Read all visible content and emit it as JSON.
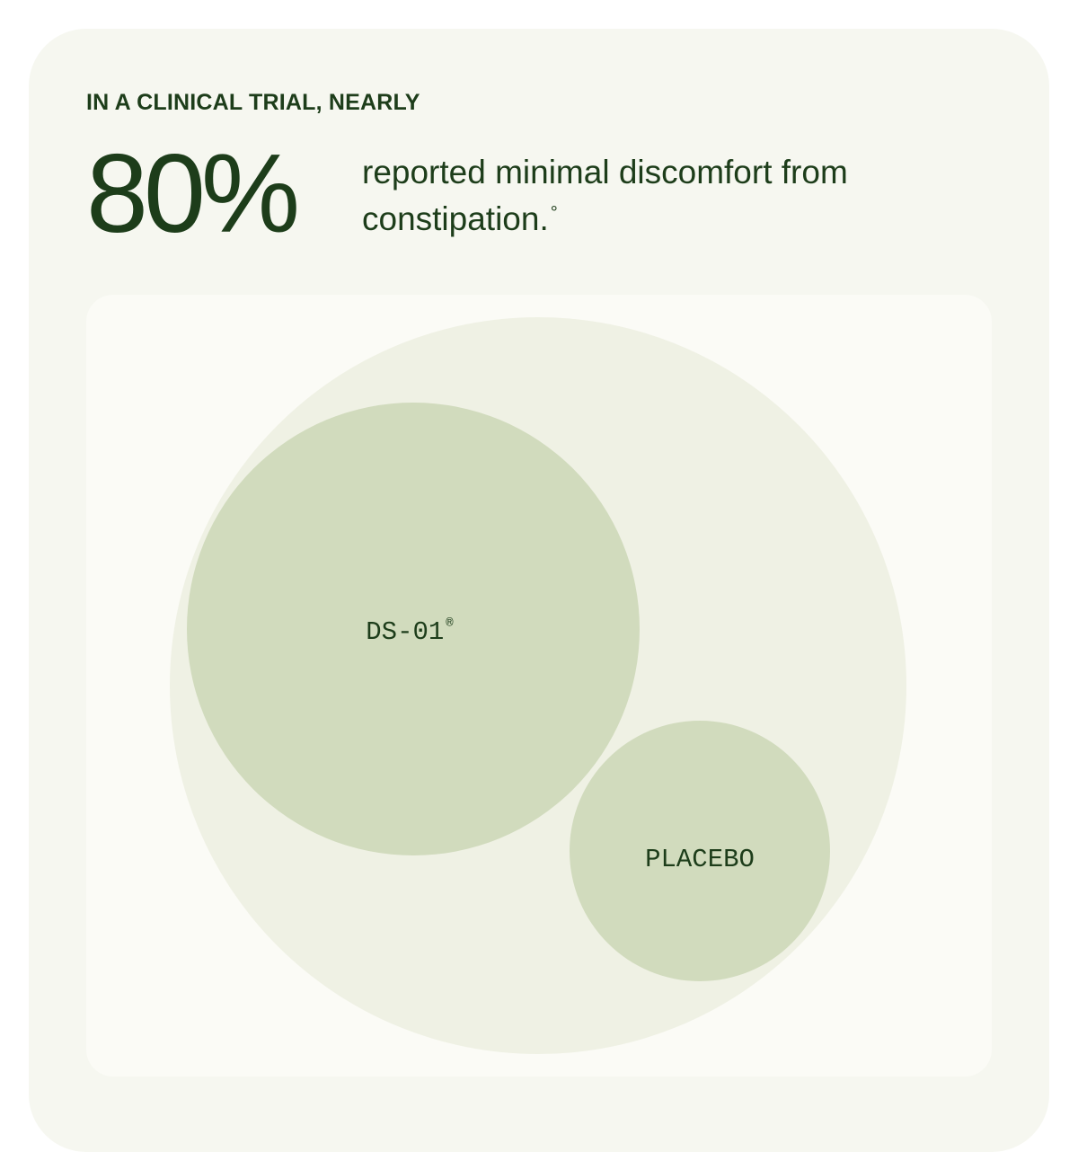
{
  "header": {
    "eyebrow": "IN A CLINICAL TRIAL, NEARLY",
    "stat_value": "80%",
    "stat_description": "reported minimal discomfort from constipation.",
    "footnote_mark": "°"
  },
  "colors": {
    "ink": "#1d3d1a",
    "card_bg": "#f6f7f0",
    "panel_bg": "#fbfbf6",
    "outer_circle": "#eff1e4",
    "inner_circle": "#d1dbbd"
  },
  "chart_data": {
    "type": "bubble",
    "title": "",
    "series": [
      {
        "name": "DS-01",
        "mark": "®"
      },
      {
        "name": "PLACEBO",
        "mark": ""
      }
    ]
  }
}
